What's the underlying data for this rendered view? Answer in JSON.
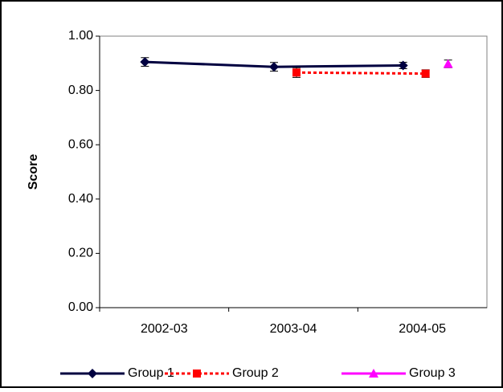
{
  "chart_data": {
    "type": "line",
    "y_label": "Score",
    "categories": [
      "2002-03",
      "2003-04",
      "2004-05"
    ],
    "series": [
      {
        "name": "Group 1",
        "color": "#000040",
        "marker": "diamond",
        "dash": "solid",
        "values": [
          0.905,
          0.887,
          0.892
        ],
        "errors": [
          0.016,
          0.016,
          0.012
        ]
      },
      {
        "name": "Group 2",
        "color": "#ff0000",
        "marker": "square",
        "dash": "dot",
        "values": [
          null,
          0.866,
          0.862
        ],
        "errors": [
          null,
          0.018,
          0.014
        ]
      },
      {
        "name": "Group 3",
        "color": "#ff00ff",
        "marker": "triangle",
        "dash": "solid",
        "values": [
          null,
          null,
          0.898
        ],
        "errors": [
          null,
          null,
          0.014
        ]
      }
    ],
    "ylim": [
      0,
      1
    ],
    "yticks": [
      {
        "value": 0,
        "label": "0.00"
      },
      {
        "value": 0.2,
        "label": "0.20"
      },
      {
        "value": 0.4,
        "label": "0.40"
      },
      {
        "value": 0.6,
        "label": "0.60"
      },
      {
        "value": 0.8,
        "label": "0.80"
      },
      {
        "value": 1,
        "label": "1.00"
      }
    ],
    "legend": "bottom"
  }
}
